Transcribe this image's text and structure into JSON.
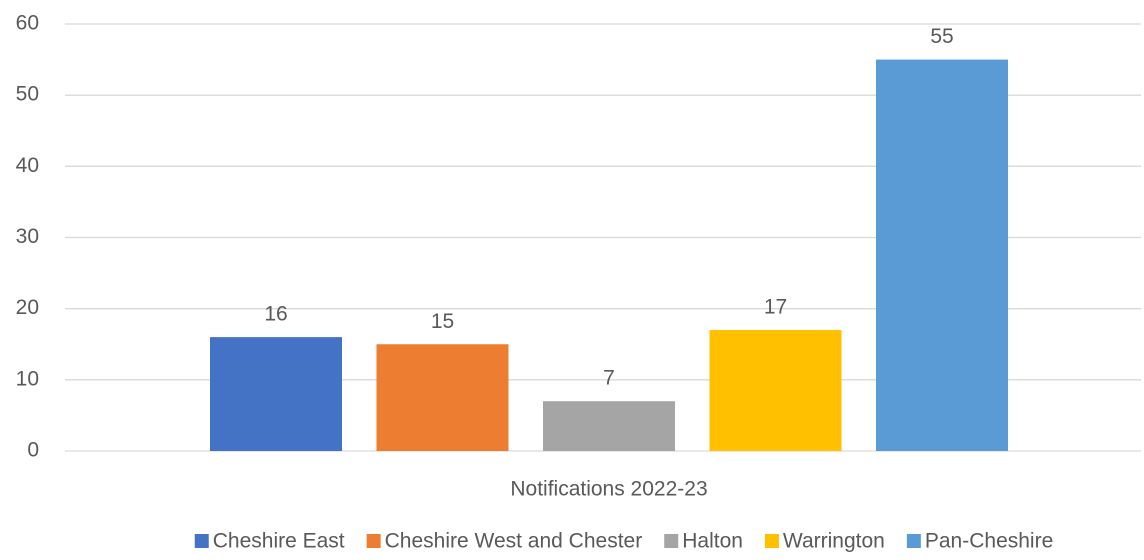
{
  "chart_data": {
    "type": "bar",
    "categories": [
      "Notifications 2022-23"
    ],
    "series": [
      {
        "name": "Cheshire East",
        "color": "#4472c4",
        "values": [
          16
        ]
      },
      {
        "name": "Cheshire West and Chester",
        "color": "#ed7d31",
        "values": [
          15
        ]
      },
      {
        "name": "Halton",
        "color": "#a5a5a5",
        "values": [
          7
        ]
      },
      {
        "name": "Warrington",
        "color": "#ffc000",
        "values": [
          17
        ]
      },
      {
        "name": "Pan-Cheshire",
        "color": "#5b9bd5",
        "values": [
          55
        ]
      }
    ],
    "ylim": [
      0,
      60
    ],
    "yticks": [
      0,
      10,
      20,
      30,
      40,
      50,
      60
    ],
    "grid": true,
    "legend": "bottom"
  }
}
